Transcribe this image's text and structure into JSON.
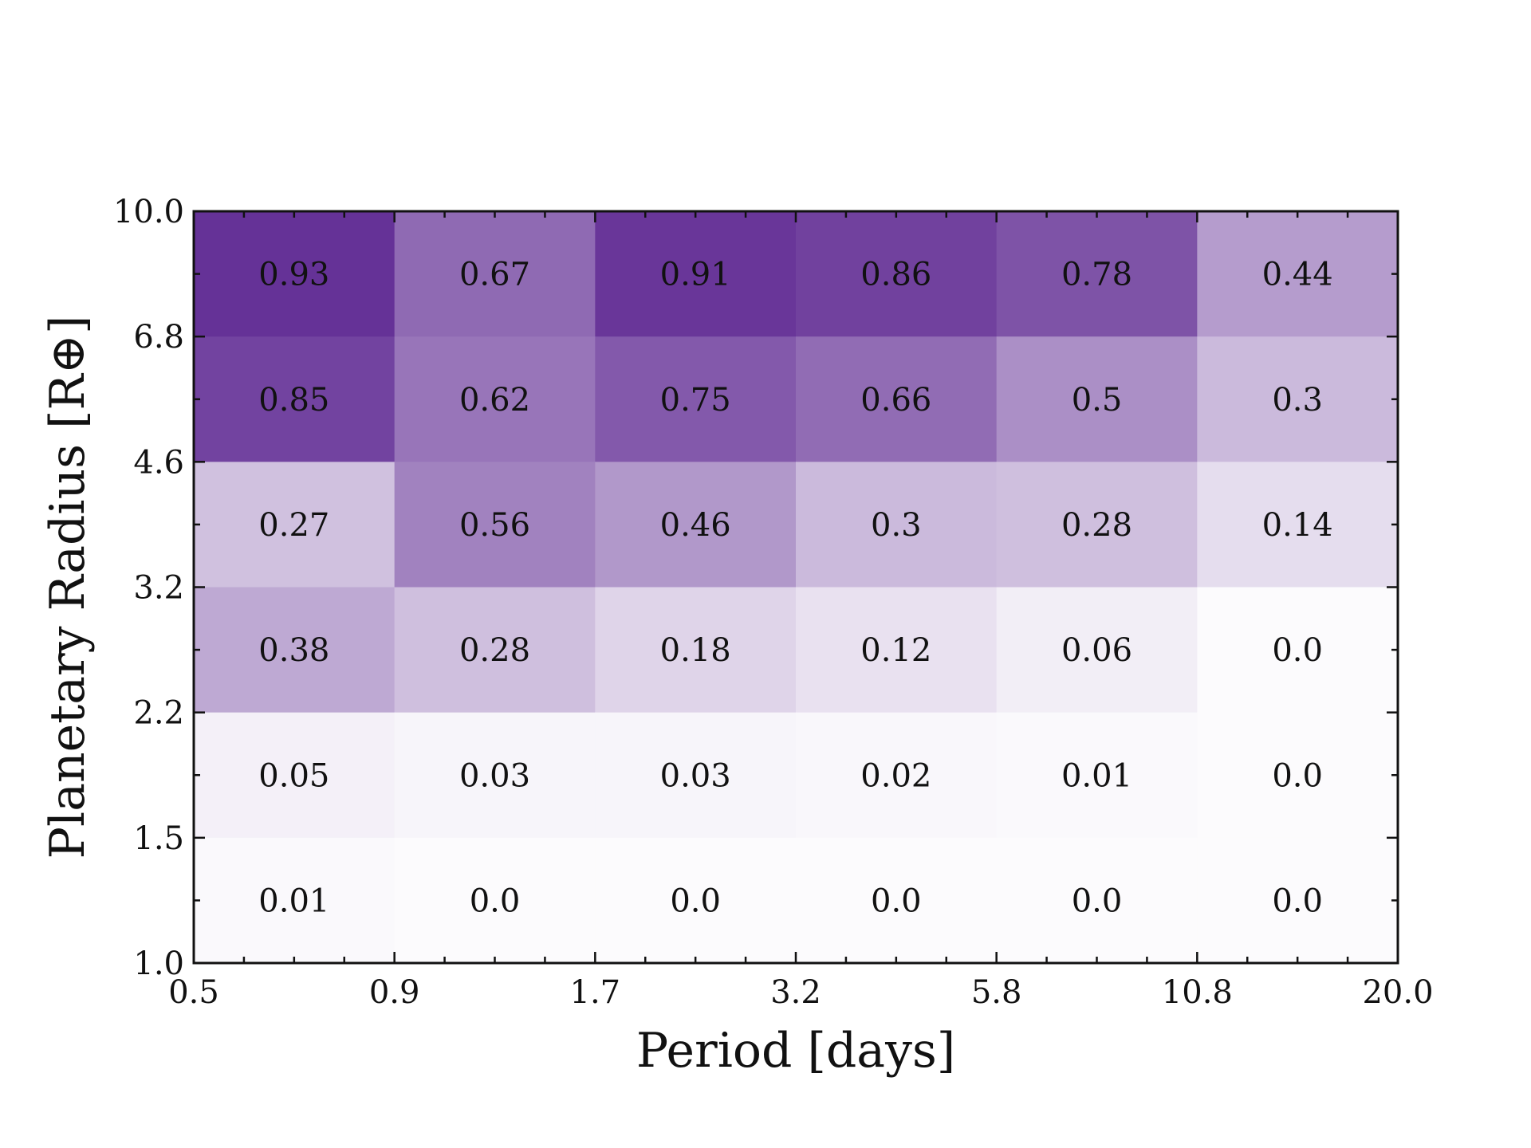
{
  "chart_data": {
    "type": "heatmap",
    "xlabel": "Period [days]",
    "ylabel": "Planetary Radius [R⊕]",
    "x_edges": [
      "0.5",
      "0.9",
      "1.7",
      "3.2",
      "5.8",
      "10.8",
      "20.0"
    ],
    "y_edges": [
      "1.0",
      "1.5",
      "2.2",
      "3.2",
      "4.6",
      "6.8",
      "10.0"
    ],
    "values": [
      [
        0.93,
        0.67,
        0.91,
        0.86,
        0.78,
        0.44
      ],
      [
        0.85,
        0.62,
        0.75,
        0.66,
        0.5,
        0.3
      ],
      [
        0.27,
        0.56,
        0.46,
        0.3,
        0.28,
        0.14
      ],
      [
        0.38,
        0.28,
        0.18,
        0.12,
        0.06,
        0.0
      ],
      [
        0.05,
        0.03,
        0.03,
        0.02,
        0.01,
        0.0
      ],
      [
        0.01,
        0.0,
        0.0,
        0.0,
        0.0,
        0.0
      ]
    ],
    "labels": [
      [
        "0.93",
        "0.67",
        "0.91",
        "0.86",
        "0.78",
        "0.44"
      ],
      [
        "0.85",
        "0.62",
        "0.75",
        "0.66",
        "0.5",
        "0.3"
      ],
      [
        "0.27",
        "0.56",
        "0.46",
        "0.3",
        "0.28",
        "0.14"
      ],
      [
        "0.38",
        "0.28",
        "0.18",
        "0.12",
        "0.06",
        "0.0"
      ],
      [
        "0.05",
        "0.03",
        "0.03",
        "0.02",
        "0.01",
        "0.0"
      ],
      [
        "0.01",
        "0.0",
        "0.0",
        "0.0",
        "0.0",
        "0.0"
      ]
    ],
    "colormap": "Purples",
    "colors": {
      "low": "#fcfbfd",
      "high": "#5a238f"
    },
    "vmin": 0,
    "vmax": 1,
    "grid": false
  }
}
